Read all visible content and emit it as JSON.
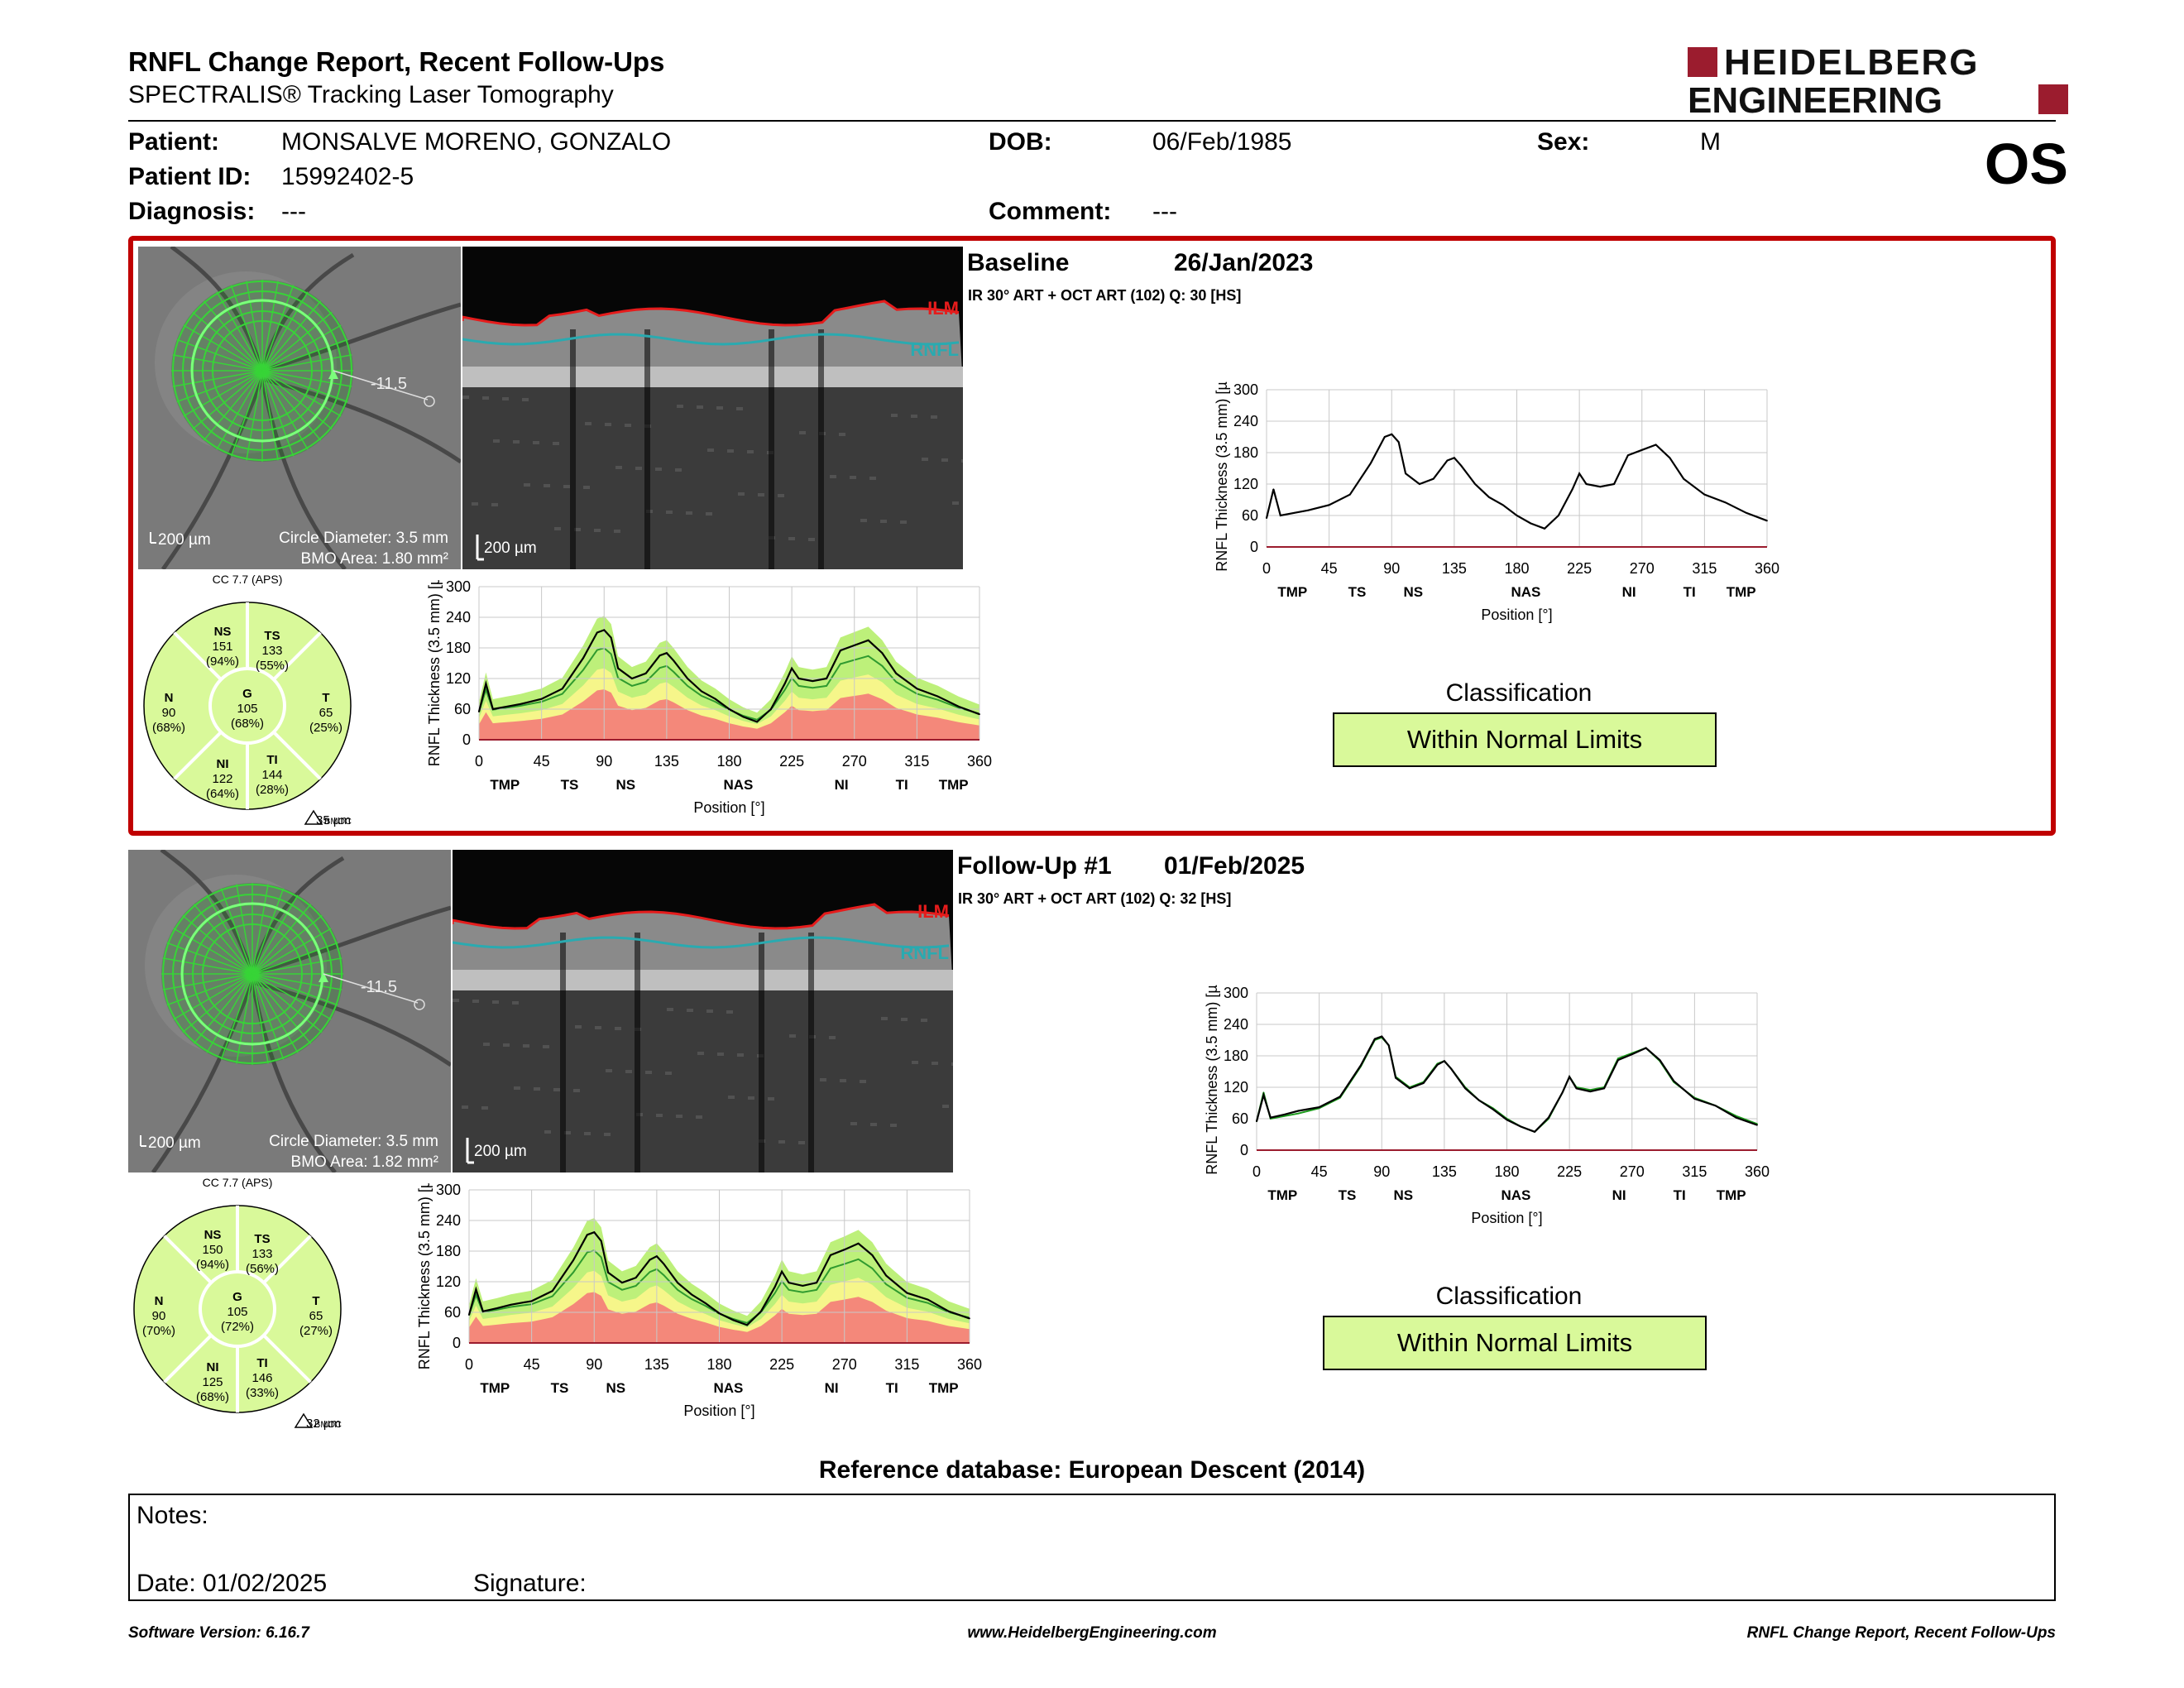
{
  "report": {
    "title": "RNFL Change Report, Recent Follow-Ups",
    "subtitle": "SPECTRALIS® Tracking Laser Tomography",
    "eye": "OS",
    "brand_line1": "HEIDELBERG",
    "brand_line2": "ENGINEERING",
    "brand_color": "#9b1c2e"
  },
  "patient": {
    "patient_label": "Patient:",
    "patient_value": "MONSALVE MORENO, GONZALO",
    "id_label": "Patient ID:",
    "id_value": "15992402-5",
    "diagnosis_label": "Diagnosis:",
    "diagnosis_value": "---",
    "dob_label": "DOB:",
    "dob_value": "06/Feb/1985",
    "comment_label": "Comment:",
    "comment_value": "---",
    "sex_label": "Sex:",
    "sex_value": "M"
  },
  "common": {
    "scale_bar": "200 µm",
    "circle_diameter": "Circle Diameter: 3.5 mm",
    "ilm": "ILM",
    "rnfl": "RNFL",
    "angle": "-11.5",
    "cc": "CC 7.7 (APS)",
    "bmoc_prefix": "BMOC",
    "classification_label": "Classification",
    "y_axis_label": "RNFL Thickness (3.5 mm) [µm]",
    "x_axis_label": "Position [°]",
    "x_ticks": [
      "0",
      "45",
      "90",
      "135",
      "180",
      "225",
      "270",
      "315",
      "360"
    ],
    "y_ticks": [
      "0",
      "60",
      "120",
      "180",
      "240",
      "300"
    ],
    "sector_labels": [
      "TMP",
      "TS",
      "NS",
      "NAS",
      "NI",
      "TI",
      "TMP"
    ]
  },
  "exams": [
    {
      "label": "Baseline",
      "date": "26/Jan/2023",
      "scan_info": "IR 30° ART + OCT ART (102) Q: 30 [HS]",
      "bmo_area": "BMO Area: 1.80 mm²",
      "bmoc_value": "35 µm",
      "classification": "Within Normal Limits",
      "sectors": {
        "NS": {
          "name": "NS",
          "value": "151",
          "pct": "(94%)"
        },
        "TS": {
          "name": "TS",
          "value": "133",
          "pct": "(55%)"
        },
        "N": {
          "name": "N",
          "value": "90",
          "pct": "(68%)"
        },
        "G": {
          "name": "G",
          "value": "105",
          "pct": "(68%)"
        },
        "T": {
          "name": "T",
          "value": "65",
          "pct": "(25%)"
        },
        "NI": {
          "name": "NI",
          "value": "122",
          "pct": "(64%)"
        },
        "TI": {
          "name": "TI",
          "value": "144",
          "pct": "(28%)"
        }
      }
    },
    {
      "label": "Follow-Up #1",
      "date": "01/Feb/2025",
      "scan_info": "IR 30° ART + OCT ART (102) Q: 32 [HS]",
      "bmo_area": "BMO Area: 1.82 mm²",
      "bmoc_value": "32 µm",
      "classification": "Within Normal Limits",
      "sectors": {
        "NS": {
          "name": "NS",
          "value": "150",
          "pct": "(94%)"
        },
        "TS": {
          "name": "TS",
          "value": "133",
          "pct": "(56%)"
        },
        "N": {
          "name": "N",
          "value": "90",
          "pct": "(70%)"
        },
        "G": {
          "name": "G",
          "value": "105",
          "pct": "(72%)"
        },
        "T": {
          "name": "T",
          "value": "65",
          "pct": "(27%)"
        },
        "NI": {
          "name": "NI",
          "value": "125",
          "pct": "(68%)"
        },
        "TI": {
          "name": "TI",
          "value": "146",
          "pct": "(33%)"
        }
      }
    }
  ],
  "reference_db": "Reference database: European Descent (2014)",
  "notes": {
    "notes_label": "Notes:",
    "date_label": "Date: 01/02/2025",
    "signature_label": "Signature:"
  },
  "footer": {
    "software": "Software Version: 6.16.7",
    "website": "www.HeidelbergEngineering.com",
    "report_name": "RNFL Change Report, Recent Follow-Ups"
  },
  "chart_data": [
    {
      "type": "line",
      "title": "",
      "xlabel": "Position [°]",
      "ylabel": "RNFL Thickness (3.5 mm) [µm]",
      "xlim": [
        0,
        360
      ],
      "ylim": [
        0,
        300
      ],
      "x": [
        0,
        5,
        10,
        20,
        30,
        45,
        60,
        75,
        85,
        90,
        95,
        100,
        110,
        120,
        130,
        135,
        140,
        150,
        160,
        170,
        180,
        190,
        200,
        210,
        220,
        225,
        230,
        240,
        250,
        260,
        270,
        280,
        290,
        300,
        315,
        330,
        345,
        360
      ],
      "series": [
        {
          "name": "Baseline",
          "values": [
            55,
            110,
            60,
            65,
            70,
            80,
            100,
            160,
            210,
            215,
            200,
            140,
            120,
            130,
            165,
            170,
            155,
            120,
            95,
            80,
            60,
            45,
            35,
            60,
            110,
            140,
            120,
            115,
            120,
            175,
            185,
            195,
            170,
            130,
            100,
            85,
            65,
            50
          ]
        },
        {
          "name": "Follow-Up #1",
          "values": [
            55,
            105,
            62,
            68,
            75,
            82,
            102,
            162,
            212,
            217,
            200,
            138,
            118,
            128,
            163,
            170,
            155,
            118,
            95,
            78,
            58,
            45,
            35,
            62,
            110,
            140,
            118,
            112,
            118,
            172,
            183,
            195,
            172,
            132,
            98,
            85,
            62,
            48
          ]
        }
      ]
    }
  ]
}
